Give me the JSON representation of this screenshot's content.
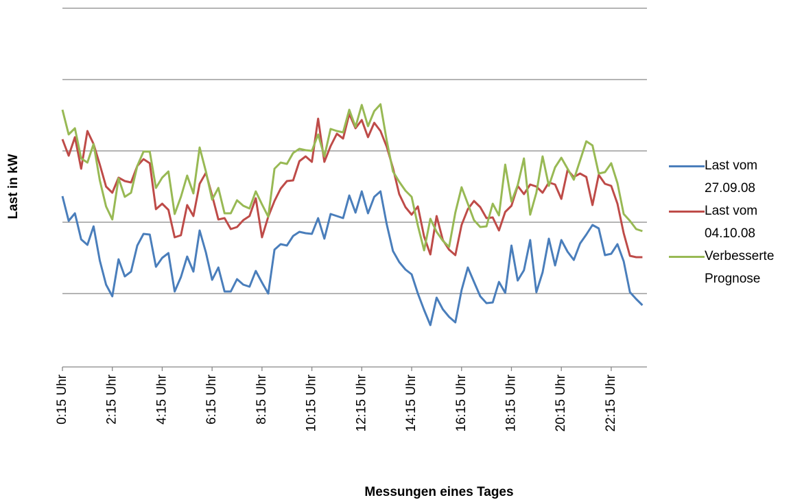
{
  "chart_data": {
    "type": "line",
    "xlabel": "Messungen eines Tages",
    "ylabel": "Last in kW",
    "categories": [
      "0:15 Uhr",
      null,
      null,
      null,
      null,
      null,
      null,
      null,
      "2:15 Uhr",
      null,
      null,
      null,
      null,
      null,
      null,
      null,
      "4:15 Uhr",
      null,
      null,
      null,
      null,
      null,
      null,
      null,
      "6:15 Uhr",
      null,
      null,
      null,
      null,
      null,
      null,
      null,
      "8:15 Uhr",
      null,
      null,
      null,
      null,
      null,
      null,
      null,
      "10:15 Uhr",
      null,
      null,
      null,
      null,
      null,
      null,
      null,
      "12:15 Uhr",
      null,
      null,
      null,
      null,
      null,
      null,
      null,
      "14:15 Uhr",
      null,
      null,
      null,
      null,
      null,
      null,
      null,
      "16:15 Uhr",
      null,
      null,
      null,
      null,
      null,
      null,
      null,
      "18:15 Uhr",
      null,
      null,
      null,
      null,
      null,
      null,
      null,
      "20:15 Uhr",
      null,
      null,
      null,
      null,
      null,
      null,
      null,
      "22:15 Uhr",
      null,
      null,
      null,
      null,
      null
    ],
    "series": [
      {
        "name": "Last vom 27.09.08",
        "color": "#4a7ebb",
        "values": [
          246,
          210,
          221,
          183,
          175,
          202,
          152,
          117,
          100,
          154,
          129,
          136,
          174,
          191,
          190,
          143,
          156,
          163,
          107,
          128,
          158,
          136,
          196,
          164,
          124,
          142,
          107,
          107,
          125,
          117,
          114,
          137,
          120,
          104,
          168,
          176,
          174,
          188,
          194,
          192,
          191,
          214,
          184,
          220,
          217,
          214,
          247,
          222,
          253,
          221,
          245,
          253,
          205,
          166,
          150,
          139,
          132,
          104,
          80,
          58,
          98,
          81,
          70,
          62,
          109,
          142,
          121,
          100,
          90,
          91,
          121,
          105,
          174,
          123,
          138,
          182,
          106,
          135,
          184,
          145,
          182,
          165,
          153,
          177,
          190,
          204,
          199,
          160,
          162,
          176,
          151,
          106,
          96,
          87
        ]
      },
      {
        "name": "Last vom 04.10.08",
        "color": "#be4b48",
        "values": [
          329,
          305,
          332,
          286,
          341,
          322,
          292,
          260,
          251,
          273,
          268,
          266,
          290,
          300,
          294,
          227,
          235,
          226,
          186,
          189,
          233,
          217,
          264,
          280,
          247,
          212,
          214,
          198,
          201,
          211,
          217,
          243,
          186,
          216,
          239,
          257,
          268,
          269,
          297,
          304,
          296,
          359,
          296,
          319,
          337,
          330,
          366,
          345,
          357,
          332,
          353,
          341,
          318,
          287,
          249,
          230,
          219,
          231,
          187,
          161,
          217,
          182,
          168,
          160,
          204,
          227,
          239,
          230,
          214,
          215,
          196,
          223,
          232,
          261,
          249,
          263,
          260,
          251,
          266,
          263,
          242,
          284,
          274,
          279,
          274,
          233,
          277,
          264,
          261,
          235,
          192,
          159,
          157,
          157
        ]
      },
      {
        "name": "Verbesserte Prognose",
        "color": "#98b954",
        "values": [
          372,
          336,
          345,
          301,
          295,
          322,
          269,
          231,
          212,
          272,
          245,
          251,
          290,
          311,
          311,
          258,
          273,
          282,
          220,
          245,
          276,
          250,
          317,
          282,
          241,
          258,
          221,
          221,
          240,
          232,
          228,
          253,
          234,
          216,
          286,
          295,
          293,
          309,
          315,
          313,
          312,
          336,
          304,
          344,
          341,
          339,
          372,
          347,
          379,
          348,
          370,
          380,
          327,
          282,
          267,
          254,
          245,
          203,
          167,
          213,
          194,
          181,
          172,
          222,
          259,
          235,
          211,
          201,
          202,
          235,
          218,
          292,
          238,
          262,
          301,
          219,
          251,
          304,
          261,
          288,
          302,
          286,
          270,
          298,
          326,
          320,
          279,
          281,
          294,
          265,
          220,
          210,
          198,
          195
        ]
      }
    ],
    "ylim": [
      0,
      520
    ],
    "yticks": [
      0,
      104,
      208,
      312,
      416,
      520
    ],
    "ytick_labels": false,
    "grid": true,
    "legend": "right"
  }
}
